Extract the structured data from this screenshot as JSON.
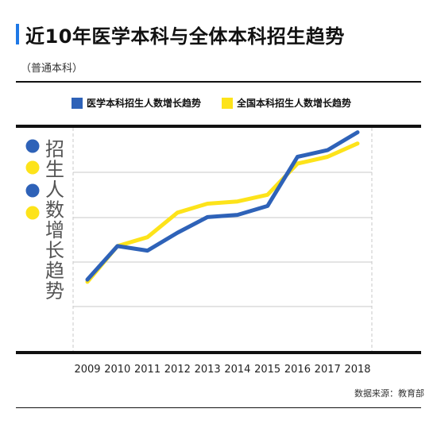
{
  "header": {
    "title": "近10年医学本科与全体本科招生趋势",
    "subtitle": "（普通本科）"
  },
  "side_label": "招生人数增长趋势",
  "source": "数据来源：教育部",
  "colors": {
    "accent": "#1e78e6",
    "medical": "#2e62b8",
    "overall": "#fde31a",
    "grid": "#c8c8c8"
  },
  "chart_data": {
    "type": "line",
    "title": "",
    "xlabel": "",
    "ylabel": "招生人数增长趋势",
    "categories": [
      "2009",
      "2010",
      "2011",
      "2012",
      "2013",
      "2014",
      "2015",
      "2016",
      "2017",
      "2018"
    ],
    "ylim": [
      0,
      1
    ],
    "grid": true,
    "legend_position": "top",
    "series": [
      {
        "name": "医学本科招生人数增长趋势",
        "color": "#2e62b8",
        "values": [
          0.32,
          0.47,
          0.45,
          0.53,
          0.6,
          0.61,
          0.65,
          0.87,
          0.9,
          0.98
        ]
      },
      {
        "name": "全国本科招生人数增长趋势",
        "color": "#fde31a",
        "values": [
          0.31,
          0.47,
          0.51,
          0.62,
          0.66,
          0.67,
          0.7,
          0.84,
          0.87,
          0.93
        ]
      }
    ]
  }
}
